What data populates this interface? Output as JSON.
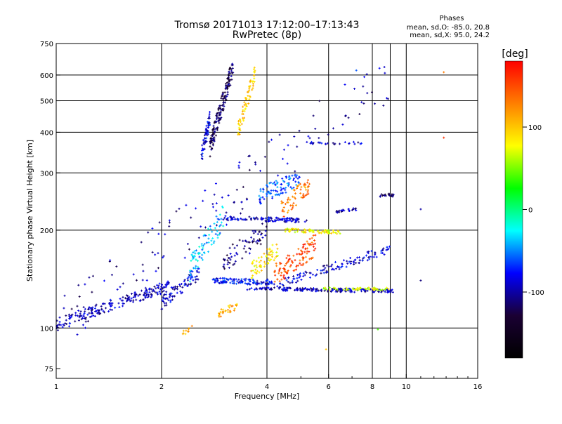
{
  "chart_data": {
    "type": "scatter",
    "title": "Tromsø 20171013 17:12:00–17:13:43",
    "subtitle": "RwPretec (8p)",
    "xlabel": "Frequency [MHz]",
    "ylabel": "Stationary phase Virtual Height [km]",
    "x_scale": "log2",
    "y_scale": "log",
    "xlim": [
      1,
      16
    ],
    "ylim": [
      70,
      750
    ],
    "x_ticks": [
      1,
      2,
      4,
      6,
      8,
      10,
      16
    ],
    "x_grid": [
      2,
      4,
      6,
      8,
      9,
      10
    ],
    "y_ticks": [
      75,
      100,
      200,
      300,
      400,
      500,
      600,
      750
    ],
    "y_grid": [
      100,
      200,
      300,
      400,
      500,
      600
    ],
    "grid": true,
    "legend_box": {
      "title": "Phases",
      "lines": [
        "mean, sd,O: -85.0, 20.8",
        "mean, sd,X:  95.0, 24.2"
      ]
    },
    "colorbar": {
      "label": "[deg]",
      "range": [
        -180,
        180
      ],
      "ticks": [
        100,
        0,
        -100
      ],
      "colors": [
        "#ff0000",
        "#ff7f00",
        "#ffff00",
        "#00ff00",
        "#00ffff",
        "#0000ff",
        "#1a0033",
        "#000000"
      ]
    },
    "traces": [
      {
        "x0": 1.0,
        "x1": 2.1,
        "y0": 103,
        "y1": 135,
        "phase": -95,
        "n": 220,
        "jitter": 0.04
      },
      {
        "x0": 2.0,
        "x1": 2.6,
        "y0": 120,
        "y1": 150,
        "phase": -90,
        "n": 80,
        "jitter": 0.05
      },
      {
        "x0": 2.6,
        "x1": 2.75,
        "y0": 340,
        "y1": 440,
        "phase": -85,
        "n": 60,
        "jitter": 0.06
      },
      {
        "x0": 2.75,
        "x1": 3.2,
        "y0": 360,
        "y1": 640,
        "phase": -120,
        "n": 170,
        "jitter": 0.07
      },
      {
        "x0": 3.3,
        "x1": 3.7,
        "y0": 400,
        "y1": 610,
        "phase": 100,
        "n": 70,
        "jitter": 0.06
      },
      {
        "x0": 3.0,
        "x1": 5.2,
        "y0": 218,
        "y1": 214,
        "phase": -90,
        "n": 110,
        "jitter": 0.015
      },
      {
        "x0": 4.5,
        "x1": 6.5,
        "y0": 200,
        "y1": 197,
        "phase": 80,
        "n": 80,
        "jitter": 0.012
      },
      {
        "x0": 3.5,
        "x1": 9.2,
        "y0": 132,
        "y1": 130,
        "phase": -95,
        "n": 180,
        "jitter": 0.012
      },
      {
        "x0": 5.8,
        "x1": 9.0,
        "y0": 132,
        "y1": 132,
        "phase": 70,
        "n": 50,
        "jitter": 0.01
      },
      {
        "x0": 2.8,
        "x1": 4.2,
        "y0": 140,
        "y1": 138,
        "phase": -80,
        "n": 110,
        "jitter": 0.02
      },
      {
        "x0": 4.2,
        "x1": 9.0,
        "y0": 135,
        "y1": 175,
        "phase": -90,
        "n": 120,
        "jitter": 0.03
      },
      {
        "x0": 3.6,
        "x1": 4.3,
        "y0": 150,
        "y1": 175,
        "phase": 90,
        "n": 60,
        "jitter": 0.06
      },
      {
        "x0": 4.2,
        "x1": 5.5,
        "y0": 145,
        "y1": 180,
        "phase": 150,
        "n": 110,
        "jitter": 0.08
      },
      {
        "x0": 3.8,
        "x1": 5.0,
        "y0": 255,
        "y1": 290,
        "phase": -60,
        "n": 90,
        "jitter": 0.06
      },
      {
        "x0": 4.4,
        "x1": 5.3,
        "y0": 230,
        "y1": 280,
        "phase": 130,
        "n": 60,
        "jitter": 0.07
      },
      {
        "x0": 2.4,
        "x1": 3.0,
        "y0": 150,
        "y1": 220,
        "phase": -40,
        "n": 80,
        "jitter": 0.09
      },
      {
        "x0": 3.0,
        "x1": 4.0,
        "y0": 160,
        "y1": 200,
        "phase": -110,
        "n": 70,
        "jitter": 0.08
      },
      {
        "x0": 2.9,
        "x1": 3.3,
        "y0": 110,
        "y1": 118,
        "phase": 110,
        "n": 30,
        "jitter": 0.03
      },
      {
        "x0": 6.3,
        "x1": 7.2,
        "y0": 228,
        "y1": 232,
        "phase": -100,
        "n": 25,
        "jitter": 0.01
      },
      {
        "x0": 8.4,
        "x1": 9.2,
        "y0": 256,
        "y1": 256,
        "phase": -110,
        "n": 20,
        "jitter": 0.01
      },
      {
        "x0": 5.2,
        "x1": 7.5,
        "y0": 370,
        "y1": 370,
        "phase": -95,
        "n": 25,
        "jitter": 0.01
      },
      {
        "x0": 2.3,
        "x1": 2.45,
        "y0": 96,
        "y1": 102,
        "phase": 110,
        "n": 10,
        "jitter": 0.02
      },
      {
        "x0": 1.0,
        "x1": 9.0,
        "y0": 100,
        "y1": 600,
        "phase": -100,
        "n": 140,
        "jitter": 0.2
      }
    ],
    "points": [
      {
        "x": 12.8,
        "y": 612,
        "phase": 130
      },
      {
        "x": 12.8,
        "y": 385,
        "phase": 160
      },
      {
        "x": 11.0,
        "y": 232,
        "phase": -100
      },
      {
        "x": 11.0,
        "y": 140,
        "phase": -110
      },
      {
        "x": 7.2,
        "y": 620,
        "phase": -60
      },
      {
        "x": 5.9,
        "y": 86,
        "phase": 100
      },
      {
        "x": 8.3,
        "y": 99,
        "phase": 40
      }
    ]
  }
}
